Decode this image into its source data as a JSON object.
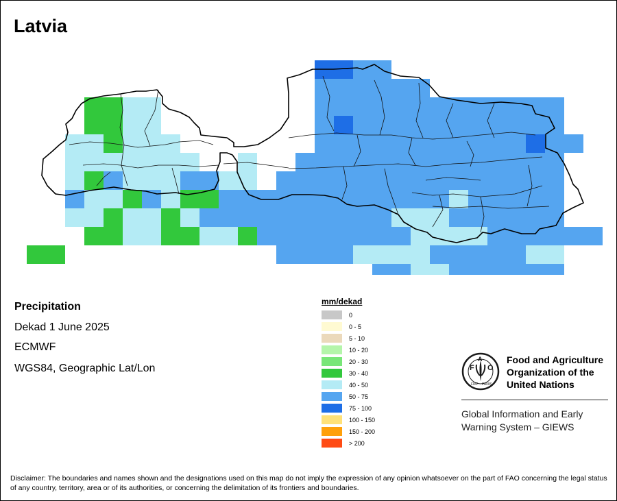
{
  "map": {
    "title": "Latvia",
    "variable": "Precipitation",
    "period": "Dekad 1 June 2025",
    "source": "ECMWF",
    "projection": "WGS84, Geographic Lat/Lon"
  },
  "legend": {
    "title": "mm/dekad",
    "classes": [
      {
        "label": "0",
        "color": "#c8c8c8"
      },
      {
        "label": "0 - 5",
        "color": "#fffad2"
      },
      {
        "label": "5 - 10",
        "color": "#ebd9bb"
      },
      {
        "label": "10 - 20",
        "color": "#b4f5aa"
      },
      {
        "label": "20 - 30",
        "color": "#78e678"
      },
      {
        "label": "30 - 40",
        "color": "#32c83c"
      },
      {
        "label": "40 - 50",
        "color": "#b4ebf5"
      },
      {
        "label": "50 - 75",
        "color": "#55a5f0"
      },
      {
        "label": "75 - 100",
        "color": "#1e6ee6"
      },
      {
        "label": "100 - 150",
        "color": "#ffe178"
      },
      {
        "label": "150 - 200",
        "color": "#ffa00a"
      },
      {
        "label": "> 200",
        "color": "#ff4b14"
      }
    ]
  },
  "organization": {
    "name": "Food and Agriculture Organization of the United Nations",
    "acronym": "FAO",
    "motto": "FIAT PANIS",
    "system": "Global Information and Early Warning System – GIEWS"
  },
  "disclaimer": "Disclaimer: The boundaries and names shown and the designations used on this map do not imply the expression of any opinion whatsoever on the part of FAO concerning the legal status of any country, territory, area or of its authorities, or concerning the delimitation of its frontiers and boundaries."
}
